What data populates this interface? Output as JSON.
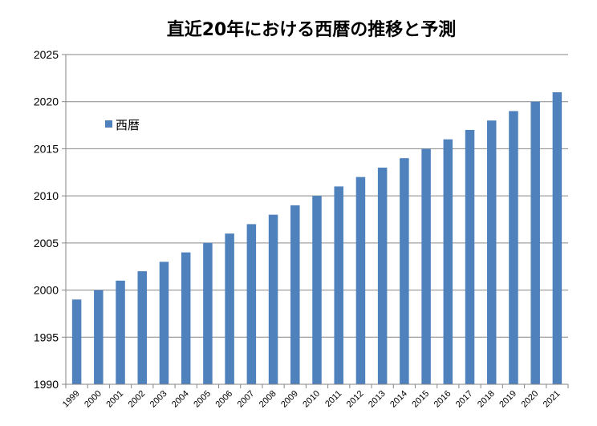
{
  "chart_data": {
    "type": "bar",
    "title": "直近20年における西暦の推移と予測",
    "xlabel": "",
    "ylabel": "",
    "ylim": [
      1990,
      2025
    ],
    "yticks": [
      1990,
      1995,
      2000,
      2005,
      2010,
      2015,
      2020,
      2025
    ],
    "grid": true,
    "legend_position": "top-left",
    "color": "#4f81bd",
    "categories": [
      "1999",
      "2000",
      "2001",
      "2002",
      "2003",
      "2004",
      "2005",
      "2006",
      "2007",
      "2008",
      "2009",
      "2010",
      "2011",
      "2012",
      "2013",
      "2014",
      "2015",
      "2016",
      "2017",
      "2018",
      "2019",
      "2020",
      "2021"
    ],
    "series": [
      {
        "name": "西暦",
        "values": [
          1999,
          2000,
          2001,
          2002,
          2003,
          2004,
          2005,
          2006,
          2007,
          2008,
          2009,
          2010,
          2011,
          2012,
          2013,
          2014,
          2015,
          2016,
          2017,
          2018,
          2019,
          2020,
          2021
        ]
      }
    ]
  }
}
